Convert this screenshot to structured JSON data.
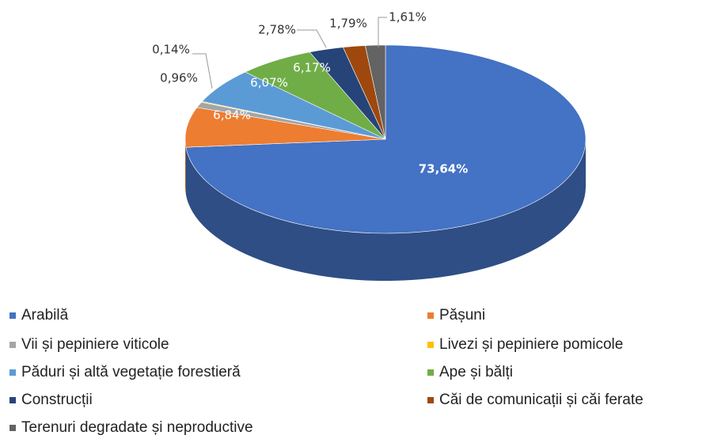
{
  "chart_data": {
    "type": "pie",
    "categories": [
      "Arabilă",
      "Pășuni",
      "Vii și pepiniere viticole",
      "Livezi și pepiniere pomicole",
      "Păduri și altă vegetație forestieră",
      "Ape și bălți",
      "Construcții",
      "Căi de comunicații și căi ferate",
      "Terenuri degradate și neproductive"
    ],
    "values": [
      73.64,
      6.84,
      0.96,
      0.14,
      6.07,
      6.17,
      2.78,
      1.79,
      1.61
    ],
    "value_labels": [
      "73,64%",
      "6,84%",
      "0,96%",
      "0,14%",
      "6,07%",
      "6,17%",
      "2,78%",
      "1,79%",
      "1,61%"
    ],
    "colors": [
      "#4472c4",
      "#ed7d31",
      "#a5a5a5",
      "#ffc000",
      "#5b9bd5",
      "#70ad47",
      "#264478",
      "#9e480e",
      "#636363"
    ],
    "legend": "bottom"
  }
}
